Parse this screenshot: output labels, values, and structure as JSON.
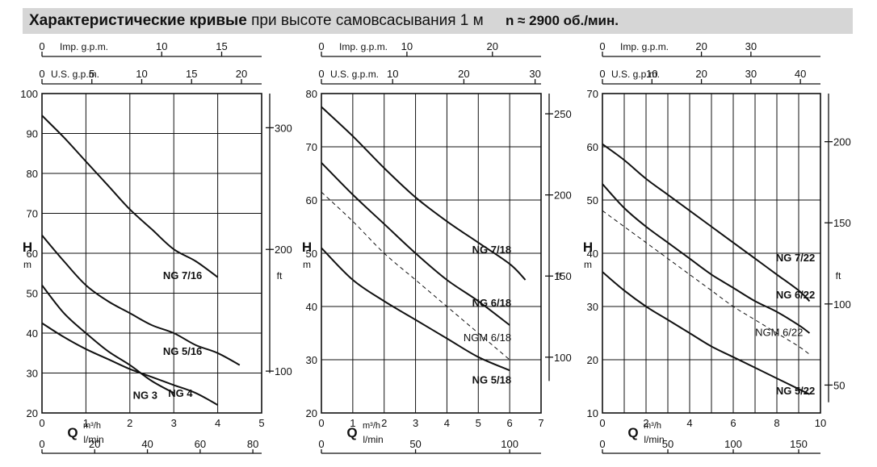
{
  "header": {
    "title_bold": "Характеристические кривые",
    "title_rest": "при высоте самовсасывания 1 м",
    "rpm": "n ≈ 2900 об./мин."
  },
  "colors": {
    "curve": "#111111",
    "grid": "#111111",
    "header_bg": "#d6d6d6"
  },
  "chart_data": [
    {
      "type": "line",
      "xlabel": "Q",
      "xunit_top": "m³/h",
      "xunit_bottom": "l/min",
      "ylabel": "H",
      "yunit": "m",
      "ylabel_right": "ft",
      "xlim": [
        0,
        5
      ],
      "ylim": [
        20,
        100
      ],
      "x_ticks": [
        "0",
        "1",
        "2",
        "3",
        "4",
        "5"
      ],
      "y_ticks": [
        "20",
        "30",
        "40",
        "50",
        "60",
        "70",
        "80",
        "90",
        "100"
      ],
      "lmin_ticks": [
        "0",
        "20",
        "40",
        "60",
        "80"
      ],
      "usgpm_label": "U.S. g.p.m.",
      "usgpm_ticks": [
        "0",
        "5",
        "10",
        "15",
        "20"
      ],
      "impgpm_label": "Imp. g.p.m.",
      "impgpm_ticks": [
        "0",
        "10",
        "15"
      ],
      "ft_ticks": [
        "100",
        "200",
        "300"
      ],
      "series": [
        {
          "name": "NG 7/16",
          "x": [
            0,
            0.5,
            1,
            1.5,
            2,
            2.5,
            3,
            3.5,
            4
          ],
          "y": [
            94.5,
            89,
            83,
            77,
            71,
            66,
            61,
            58,
            54
          ]
        },
        {
          "name": "NG 5/16",
          "x": [
            0,
            0.5,
            1,
            1.5,
            2,
            2.5,
            3,
            3.5,
            4,
            4.5
          ],
          "y": [
            64.5,
            58,
            52,
            48,
            45,
            42,
            40,
            37,
            35,
            32
          ]
        },
        {
          "name": "NG 4",
          "x": [
            0,
            0.5,
            1,
            1.5,
            2,
            2.5,
            3,
            3.5,
            4
          ],
          "y": [
            42.5,
            39,
            36,
            33.5,
            31,
            29,
            27,
            25,
            22
          ]
        },
        {
          "name": "NG 3",
          "x": [
            0,
            0.5,
            1,
            1.5,
            2,
            2.5,
            3
          ],
          "y": [
            52,
            45,
            40,
            35.5,
            32,
            28,
            25
          ]
        }
      ]
    },
    {
      "type": "line",
      "xlabel": "Q",
      "xunit_top": "m³/h",
      "xunit_bottom": "l/min",
      "ylabel": "H",
      "yunit": "m",
      "ylabel_right": "ft",
      "xlim": [
        0,
        7
      ],
      "ylim": [
        20,
        80
      ],
      "x_ticks": [
        "0",
        "1",
        "2",
        "3",
        "4",
        "5",
        "6",
        "7"
      ],
      "y_ticks": [
        "20",
        "30",
        "40",
        "50",
        "60",
        "70",
        "80"
      ],
      "lmin_ticks": [
        "0",
        "50",
        "100"
      ],
      "usgpm_label": "U.S. g.p.m.",
      "usgpm_ticks": [
        "0",
        "10",
        "20",
        "30"
      ],
      "impgpm_label": "Imp. g.p.m.",
      "impgpm_ticks": [
        "0",
        "10",
        "20"
      ],
      "ft_ticks": [
        "100",
        "150",
        "200",
        "250"
      ],
      "series": [
        {
          "name": "NG 7/18",
          "x": [
            0,
            1,
            2,
            3,
            4,
            5,
            6,
            6.5
          ],
          "y": [
            77.5,
            72,
            66,
            60.5,
            56,
            52,
            48,
            45
          ]
        },
        {
          "name": "NG 6/18",
          "x": [
            0,
            1,
            2,
            3,
            4,
            5,
            6
          ],
          "y": [
            67,
            61,
            55.5,
            50,
            45,
            41,
            36.5
          ]
        },
        {
          "name": "NGM 6/18",
          "x": [
            0,
            1,
            2,
            3,
            4,
            5,
            6
          ],
          "y": [
            61.5,
            56,
            50,
            45,
            40,
            35,
            30
          ]
        },
        {
          "name": "NG 5/18",
          "x": [
            0,
            1,
            2,
            3,
            4,
            5,
            6
          ],
          "y": [
            51,
            45,
            41,
            37.5,
            34,
            30.5,
            28
          ]
        }
      ]
    },
    {
      "type": "line",
      "xlabel": "Q",
      "xunit_top": "m³/h",
      "xunit_bottom": "l/min",
      "ylabel": "H",
      "yunit": "m",
      "ylabel_right": "ft",
      "xlim": [
        0,
        10
      ],
      "ylim": [
        10,
        70
      ],
      "x_ticks": [
        "0",
        "2",
        "4",
        "6",
        "8",
        "10"
      ],
      "y_ticks": [
        "10",
        "20",
        "30",
        "40",
        "50",
        "60",
        "70"
      ],
      "lmin_ticks": [
        "0",
        "50",
        "100",
        "150"
      ],
      "usgpm_label": "U.S. g.p.m.",
      "usgpm_ticks": [
        "0",
        "10",
        "20",
        "30",
        "40"
      ],
      "impgpm_label": "Imp. g.p.m.",
      "impgpm_ticks": [
        "0",
        "20",
        "30"
      ],
      "ft_ticks": [
        "50",
        "100",
        "150",
        "200"
      ],
      "series": [
        {
          "name": "NG 7/22",
          "x": [
            0,
            1,
            2,
            3,
            4,
            5,
            6,
            7,
            8,
            9,
            9.5
          ],
          "y": [
            60.5,
            57.5,
            54,
            51,
            48,
            45,
            42,
            39,
            36,
            33,
            31
          ]
        },
        {
          "name": "NG 6/22",
          "x": [
            0,
            1,
            2,
            3,
            4,
            5,
            6,
            7,
            8,
            9,
            9.5
          ],
          "y": [
            53,
            48.5,
            45,
            42,
            39,
            36,
            33.5,
            31,
            29,
            26.5,
            25
          ]
        },
        {
          "name": "NGM 6/22",
          "x": [
            0,
            1,
            2,
            3,
            4,
            5,
            6,
            7,
            8,
            9,
            9.5
          ],
          "y": [
            48,
            45,
            42,
            39,
            36,
            33,
            30,
            27.5,
            25,
            22.5,
            21
          ]
        },
        {
          "name": "NG 5/22",
          "x": [
            0,
            1,
            2,
            3,
            4,
            5,
            6,
            7,
            8,
            9,
            9.5
          ],
          "y": [
            36.5,
            33,
            30,
            27.5,
            25,
            22.5,
            20.5,
            18.5,
            16.5,
            14.5,
            13.5
          ]
        }
      ]
    }
  ]
}
